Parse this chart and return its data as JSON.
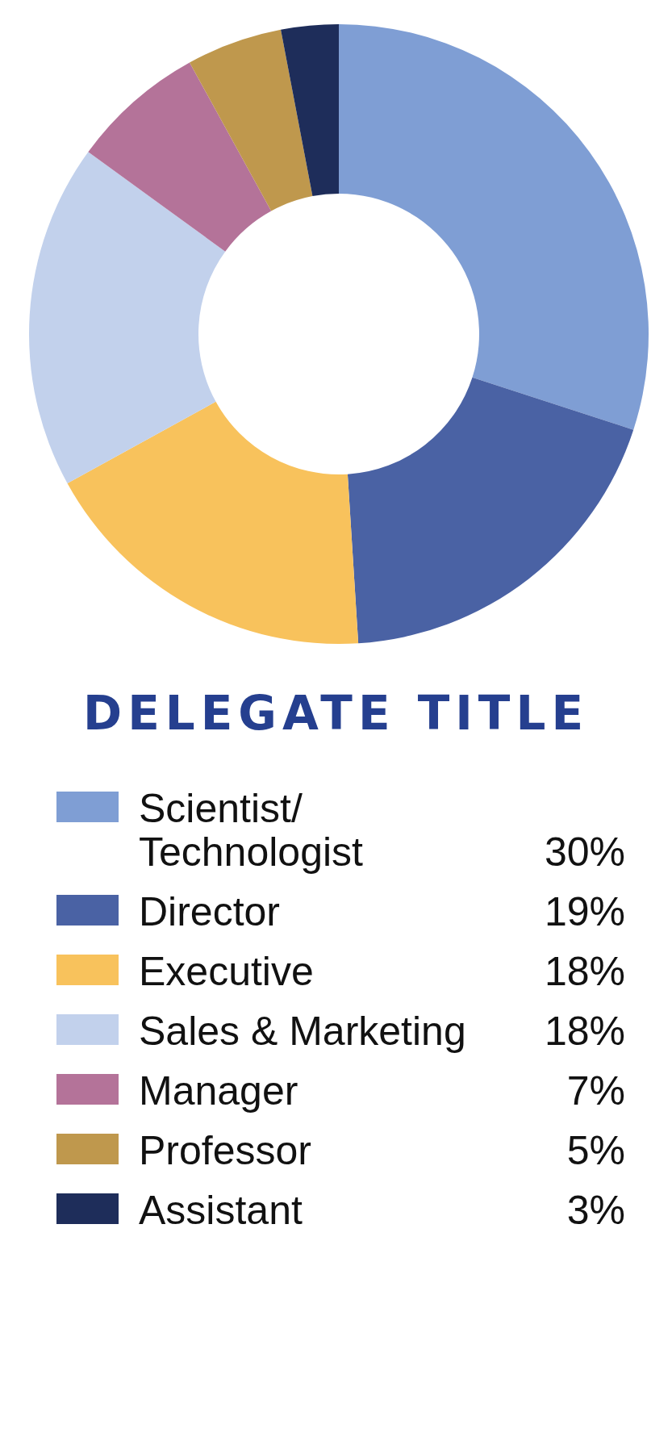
{
  "chart_data": {
    "type": "donut",
    "title": "DELEGATE TITLE",
    "categories": [
      "Scientist/Technologist",
      "Director",
      "Executive",
      "Sales & Marketing",
      "Manager",
      "Professor",
      "Assistant"
    ],
    "values": [
      30,
      19,
      18,
      18,
      7,
      5,
      3
    ],
    "colors": [
      "#7f9ed4",
      "#4a62a4",
      "#f8c25c",
      "#c2d1ec",
      "#b47399",
      "#bf984d",
      "#1e2d5a"
    ],
    "value_labels": [
      "30%",
      "19%",
      "18%",
      "18%",
      "7%",
      "5%",
      "3%"
    ],
    "legend": "bottom"
  }
}
